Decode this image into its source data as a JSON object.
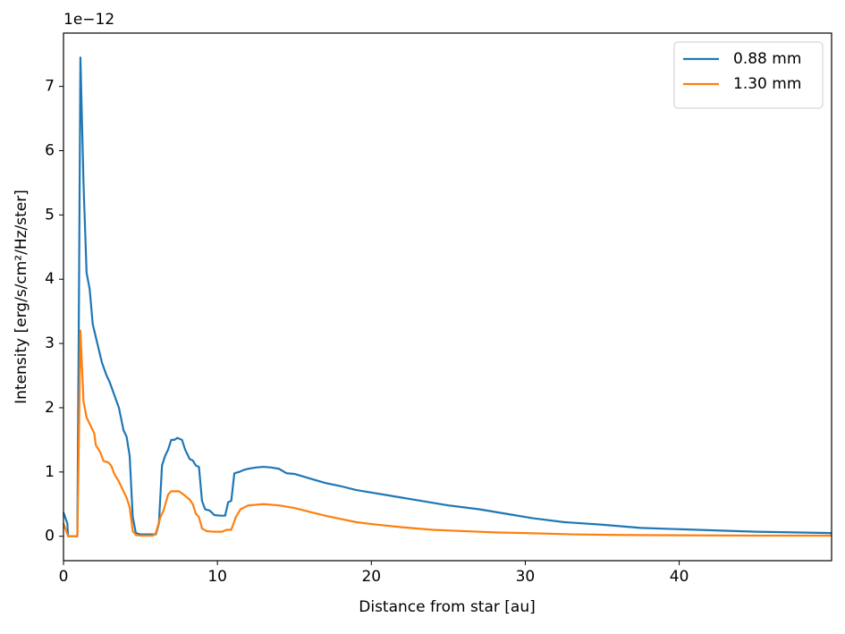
{
  "chart_data": {
    "type": "line",
    "offset_label": "1e−12",
    "x_label": "Distance from star [au]",
    "y_label": "Intensity [erg/s/cm²/Hz/ster]",
    "xlim": [
      0,
      49.9
    ],
    "ylim": [
      -0.38,
      7.83
    ],
    "xticks": [
      0,
      10,
      20,
      30,
      40
    ],
    "yticks": [
      0,
      1,
      2,
      3,
      4,
      5,
      6,
      7
    ],
    "legend": "upper right",
    "series": [
      {
        "name": "0.88 mm",
        "color": "#1f77b4",
        "x": [
          0,
          0.25,
          0.3,
          0.9,
          1.0,
          1.1,
          1.3,
          1.5,
          1.7,
          1.9,
          2.2,
          2.5,
          2.8,
          3.0,
          3.3,
          3.6,
          3.9,
          4.1,
          4.3,
          4.5,
          4.7,
          5.0,
          6.0,
          6.2,
          6.4,
          6.6,
          6.8,
          7.0,
          7.2,
          7.4,
          7.7,
          7.9,
          8.2,
          8.4,
          8.6,
          8.8,
          9.0,
          9.2,
          9.5,
          9.8,
          10.2,
          10.5,
          10.7,
          10.9,
          11.1,
          11.4,
          11.7,
          12.0,
          12.5,
          13.0,
          13.5,
          14.0,
          14.5,
          15.0,
          16.0,
          17.0,
          18.0,
          19.0,
          20.0,
          21.5,
          23.0,
          25.0,
          27.0,
          29.0,
          30.5,
          32.5,
          35.0,
          37.5,
          40.0,
          42.5,
          45.0,
          47.5,
          49.9
        ],
        "values": [
          0.37,
          0.2,
          0,
          0,
          3.5,
          7.45,
          5.5,
          4.1,
          3.85,
          3.3,
          3.0,
          2.7,
          2.5,
          2.4,
          2.2,
          2.0,
          1.65,
          1.55,
          1.25,
          0.3,
          0.05,
          0.03,
          0.03,
          0.2,
          1.1,
          1.25,
          1.35,
          1.5,
          1.5,
          1.53,
          1.5,
          1.35,
          1.2,
          1.18,
          1.1,
          1.08,
          0.55,
          0.42,
          0.4,
          0.33,
          0.32,
          0.32,
          0.53,
          0.55,
          0.98,
          1.0,
          1.03,
          1.05,
          1.07,
          1.08,
          1.07,
          1.05,
          0.98,
          0.97,
          0.9,
          0.83,
          0.78,
          0.72,
          0.68,
          0.62,
          0.56,
          0.48,
          0.42,
          0.34,
          0.28,
          0.22,
          0.18,
          0.13,
          0.11,
          0.09,
          0.07,
          0.06,
          0.05
        ]
      },
      {
        "name": "1.30 mm",
        "color": "#ff7f0e",
        "x": [
          0,
          0.3,
          0.9,
          1.0,
          1.1,
          1.3,
          1.5,
          1.8,
          2.0,
          2.1,
          2.4,
          2.6,
          2.9,
          3.1,
          3.3,
          3.6,
          3.9,
          4.1,
          4.3,
          4.5,
          4.7,
          5.0,
          5.8,
          6.0,
          6.3,
          6.5,
          6.8,
          7.0,
          7.5,
          7.8,
          8.2,
          8.4,
          8.6,
          8.8,
          9.0,
          9.3,
          9.8,
          10.3,
          10.6,
          10.9,
          11.2,
          11.5,
          12.0,
          13.0,
          14.0,
          15.0,
          16.0,
          17.0,
          18.0,
          19.0,
          20.0,
          22.0,
          24.0,
          26.0,
          28.0,
          30.0,
          33.0,
          36.0,
          40.0,
          45.0,
          49.9
        ],
        "values": [
          0.2,
          0,
          0,
          1.5,
          3.2,
          2.1,
          1.85,
          1.7,
          1.6,
          1.42,
          1.3,
          1.17,
          1.15,
          1.1,
          0.97,
          0.85,
          0.7,
          0.6,
          0.45,
          0.08,
          0.02,
          0.01,
          0.01,
          0.05,
          0.3,
          0.4,
          0.65,
          0.7,
          0.7,
          0.65,
          0.57,
          0.5,
          0.35,
          0.3,
          0.12,
          0.08,
          0.07,
          0.07,
          0.1,
          0.1,
          0.3,
          0.42,
          0.48,
          0.5,
          0.48,
          0.44,
          0.38,
          0.32,
          0.27,
          0.22,
          0.19,
          0.14,
          0.1,
          0.08,
          0.06,
          0.05,
          0.03,
          0.02,
          0.015,
          0.01,
          0.01
        ]
      }
    ]
  }
}
